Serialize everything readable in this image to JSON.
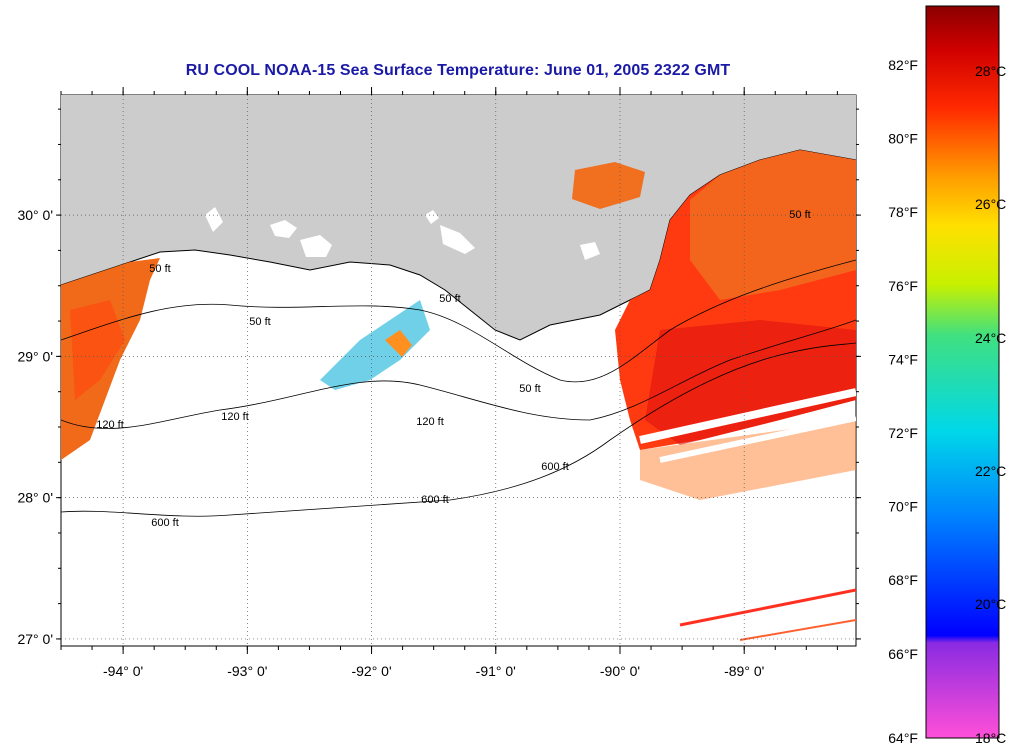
{
  "title": "RU COOL  NOAA-15  Sea Surface Temperature:  June 01, 2005 2322 GMT",
  "map": {
    "lat_ticks": [
      {
        "value": 30,
        "label": "30° 0'"
      },
      {
        "value": 29,
        "label": "29° 0'"
      },
      {
        "value": 28,
        "label": "28° 0'"
      },
      {
        "value": 27,
        "label": "27° 0'"
      }
    ],
    "lon_ticks": [
      {
        "value": -94,
        "label": "-94° 0'"
      },
      {
        "value": -93,
        "label": "-93° 0'"
      },
      {
        "value": -92,
        "label": "-92° 0'"
      },
      {
        "value": -91,
        "label": "-91° 0'"
      },
      {
        "value": -90,
        "label": "-90° 0'"
      },
      {
        "value": -89,
        "label": "-89° 0'"
      }
    ],
    "lon_range": [
      -94.5,
      -88.1
    ],
    "lat_range": [
      26.95,
      30.85
    ],
    "grid": "dotted",
    "land_color": "#cccccc",
    "contour_labels": [
      "50 ft",
      "120 ft",
      "600 ft"
    ]
  },
  "colorbar": {
    "f_labels": [
      "82°F",
      "80°F",
      "78°F",
      "76°F",
      "74°F",
      "72°F",
      "70°F",
      "68°F",
      "66°F",
      "64°F"
    ],
    "c_labels": [
      "28°C",
      "26°C",
      "24°C",
      "22°C",
      "20°C",
      "18°C"
    ],
    "range_c": [
      18,
      29.5
    ]
  }
}
